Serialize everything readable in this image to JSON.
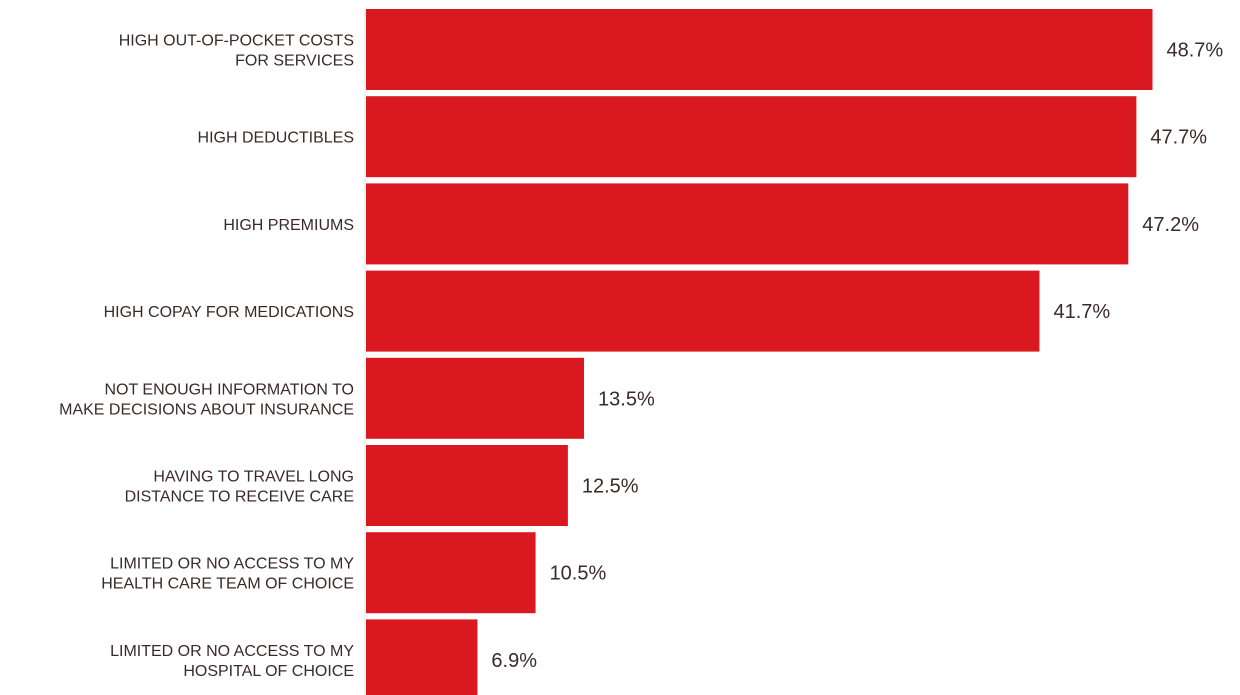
{
  "chart_data": {
    "type": "bar",
    "orientation": "horizontal",
    "bar_color": "#d9181f",
    "text_color": "#3a2a2a",
    "value_suffix": "%",
    "xlim": [
      0,
      50
    ],
    "grid": false,
    "legend": "none",
    "categories": [
      [
        "HIGH OUT-OF-POCKET COSTS",
        "FOR SERVICES"
      ],
      [
        "HIGH DEDUCTIBLES"
      ],
      [
        "HIGH PREMIUMS"
      ],
      [
        "HIGH COPAY FOR MEDICATIONS"
      ],
      [
        "NOT ENOUGH INFORMATION TO",
        "MAKE DECISIONS ABOUT INSURANCE"
      ],
      [
        "HAVING TO TRAVEL LONG",
        "DISTANCE TO RECEIVE CARE"
      ],
      [
        "LIMITED OR NO ACCESS TO MY",
        "HEALTH CARE TEAM OF CHOICE"
      ],
      [
        "LIMITED OR NO ACCESS TO MY",
        "HOSPITAL OF CHOICE"
      ]
    ],
    "values": [
      48.7,
      47.7,
      47.2,
      41.7,
      13.5,
      12.5,
      10.5,
      6.9
    ],
    "value_labels": [
      "48.7%",
      "47.7%",
      "47.2%",
      "41.7%",
      "13.5%",
      "12.5%",
      "10.5%",
      "6.9%"
    ]
  }
}
